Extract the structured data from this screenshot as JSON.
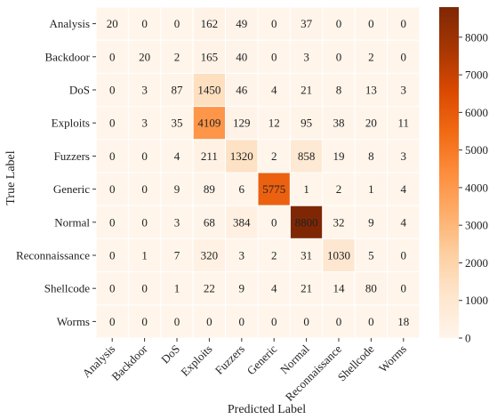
{
  "chart_data": {
    "type": "heatmap",
    "title": "",
    "xlabel": "Predicted Label",
    "ylabel": "True Label",
    "x_categories": [
      "Analysis",
      "Backdoor",
      "DoS",
      "Exploits",
      "Fuzzers",
      "Generic",
      "Normal",
      "Reconnaissance",
      "Shellcode",
      "Worms"
    ],
    "y_categories": [
      "Analysis",
      "Backdoor",
      "DoS",
      "Exploits",
      "Fuzzers",
      "Generic",
      "Normal",
      "Reconnaissance",
      "Shellcode",
      "Worms"
    ],
    "values": [
      [
        20,
        0,
        0,
        162,
        49,
        0,
        37,
        0,
        0,
        0
      ],
      [
        0,
        20,
        2,
        165,
        40,
        0,
        3,
        0,
        2,
        0
      ],
      [
        0,
        3,
        87,
        1450,
        46,
        4,
        21,
        8,
        13,
        3
      ],
      [
        0,
        3,
        35,
        4109,
        129,
        12,
        95,
        38,
        20,
        11
      ],
      [
        0,
        0,
        4,
        211,
        1320,
        2,
        858,
        19,
        8,
        3
      ],
      [
        0,
        0,
        9,
        89,
        6,
        5775,
        1,
        2,
        1,
        4
      ],
      [
        0,
        0,
        3,
        68,
        384,
        0,
        8800,
        32,
        9,
        4
      ],
      [
        0,
        1,
        7,
        320,
        3,
        2,
        31,
        1030,
        5,
        0
      ],
      [
        0,
        0,
        1,
        22,
        9,
        4,
        21,
        14,
        80,
        0
      ],
      [
        0,
        0,
        0,
        0,
        0,
        0,
        0,
        0,
        0,
        18
      ]
    ],
    "colorbar": {
      "range": [
        0,
        8800
      ],
      "ticks": [
        0,
        1000,
        2000,
        3000,
        4000,
        5000,
        6000,
        7000,
        8000
      ],
      "colormap": [
        "#fff5eb",
        "#fee6ce",
        "#fdd0a2",
        "#fdae6b",
        "#fd8d3c",
        "#f16913",
        "#d94801",
        "#a63603",
        "#7f2704"
      ]
    },
    "grid": true
  }
}
